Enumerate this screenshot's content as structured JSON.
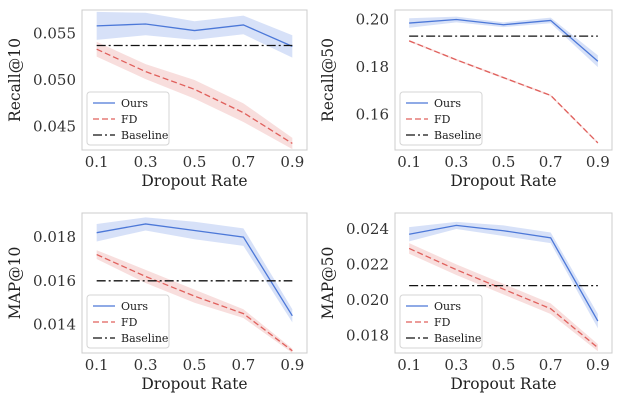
{
  "colors": {
    "ours": "#4c78d8",
    "ours_band": "#c9d7f6",
    "fd": "#e0605c",
    "fd_band": "#f6d3d2",
    "baseline": "#111111",
    "frame": "#cccccc"
  },
  "chart_data": [
    {
      "type": "line",
      "xlabel": "Dropout Rate",
      "ylabel": "Recall@10",
      "x": [
        0.1,
        0.3,
        0.5,
        0.7,
        0.9
      ],
      "xticks": [
        "0.1",
        "0.3",
        "0.5",
        "0.7",
        "0.9"
      ],
      "ylim": [
        0.0425,
        0.0575
      ],
      "yticks": [
        0.045,
        0.05,
        0.055
      ],
      "ytick_labels": [
        "0.045",
        "0.050",
        "0.055"
      ],
      "legend_position": "lower-left",
      "series": [
        {
          "name": "Ours",
          "values": [
            0.0558,
            0.056,
            0.0553,
            0.0559,
            0.0536
          ],
          "band": [
            0.0015,
            0.0012,
            0.001,
            0.001,
            0.0012
          ],
          "style": "solid"
        },
        {
          "name": "FD",
          "values": [
            0.0533,
            0.0509,
            0.049,
            0.0465,
            0.0432
          ],
          "band": [
            0.0008,
            0.0008,
            0.001,
            0.001,
            0.0006
          ],
          "style": "dashed"
        },
        {
          "name": "Baseline",
          "values": [
            0.0537,
            0.0537,
            0.0537,
            0.0537,
            0.0537
          ],
          "band": null,
          "style": "dashdot"
        }
      ]
    },
    {
      "type": "line",
      "xlabel": "Dropout Rate",
      "ylabel": "Recall@50",
      "x": [
        0.1,
        0.3,
        0.5,
        0.7,
        0.9
      ],
      "xticks": [
        "0.1",
        "0.3",
        "0.5",
        "0.7",
        "0.9"
      ],
      "ylim": [
        0.145,
        0.204
      ],
      "yticks": [
        0.16,
        0.18,
        0.2
      ],
      "ytick_labels": [
        "0.16",
        "0.18",
        "0.20"
      ],
      "legend_position": "lower-left",
      "series": [
        {
          "name": "Ours",
          "values": [
            0.1985,
            0.2,
            0.1978,
            0.1996,
            0.1824
          ],
          "band": [
            0.002,
            0.0012,
            0.001,
            0.0012,
            0.0025
          ],
          "style": "solid"
        },
        {
          "name": "FD",
          "values": [
            0.191,
            0.183,
            0.1755,
            0.168,
            0.148
          ],
          "band": [
            0.0004,
            0.0004,
            0.0004,
            0.0004,
            0.0004
          ],
          "style": "dashed"
        },
        {
          "name": "Baseline",
          "values": [
            0.193,
            0.193,
            0.193,
            0.193,
            0.193
          ],
          "band": null,
          "style": "dashdot"
        }
      ]
    },
    {
      "type": "line",
      "xlabel": "Dropout Rate",
      "ylabel": "MAP@10",
      "x": [
        0.1,
        0.3,
        0.5,
        0.7,
        0.9
      ],
      "xticks": [
        "0.1",
        "0.3",
        "0.5",
        "0.7",
        "0.9"
      ],
      "ylim": [
        0.0127,
        0.0191
      ],
      "yticks": [
        0.014,
        0.016,
        0.018
      ],
      "ytick_labels": [
        "0.014",
        "0.016",
        "0.018"
      ],
      "legend_position": "lower-left",
      "series": [
        {
          "name": "Ours",
          "values": [
            0.0182,
            0.0186,
            0.0183,
            0.018,
            0.0144
          ],
          "band": [
            0.0004,
            0.0003,
            0.0004,
            0.0004,
            0.0003
          ],
          "style": "solid"
        },
        {
          "name": "FD",
          "values": [
            0.0172,
            0.0162,
            0.0153,
            0.0145,
            0.0128
          ],
          "band": [
            0.0002,
            0.0003,
            0.0003,
            0.0002,
            0.0001
          ],
          "style": "dashed"
        },
        {
          "name": "Baseline",
          "values": [
            0.016,
            0.016,
            0.016,
            0.016,
            0.016
          ],
          "band": null,
          "style": "dashdot"
        }
      ]
    },
    {
      "type": "line",
      "xlabel": "Dropout Rate",
      "ylabel": "MAP@50",
      "x": [
        0.1,
        0.3,
        0.5,
        0.7,
        0.9
      ],
      "xticks": [
        "0.1",
        "0.3",
        "0.5",
        "0.7",
        "0.9"
      ],
      "ylim": [
        0.017,
        0.0249
      ],
      "yticks": [
        0.018,
        0.02,
        0.022,
        0.024
      ],
      "ytick_labels": [
        "0.018",
        "0.020",
        "0.022",
        "0.024"
      ],
      "legend_position": "lower-left",
      "series": [
        {
          "name": "Ours",
          "values": [
            0.0237,
            0.0242,
            0.0239,
            0.0235,
            0.0188
          ],
          "band": [
            0.0004,
            0.0002,
            0.0003,
            0.0003,
            0.0004
          ],
          "style": "solid"
        },
        {
          "name": "FD",
          "values": [
            0.0229,
            0.0217,
            0.0206,
            0.0195,
            0.0173
          ],
          "band": [
            0.0003,
            0.0003,
            0.0003,
            0.0003,
            0.0002
          ],
          "style": "dashed"
        },
        {
          "name": "Baseline",
          "values": [
            0.0208,
            0.0208,
            0.0208,
            0.0208,
            0.0208
          ],
          "band": null,
          "style": "dashdot"
        }
      ]
    }
  ]
}
